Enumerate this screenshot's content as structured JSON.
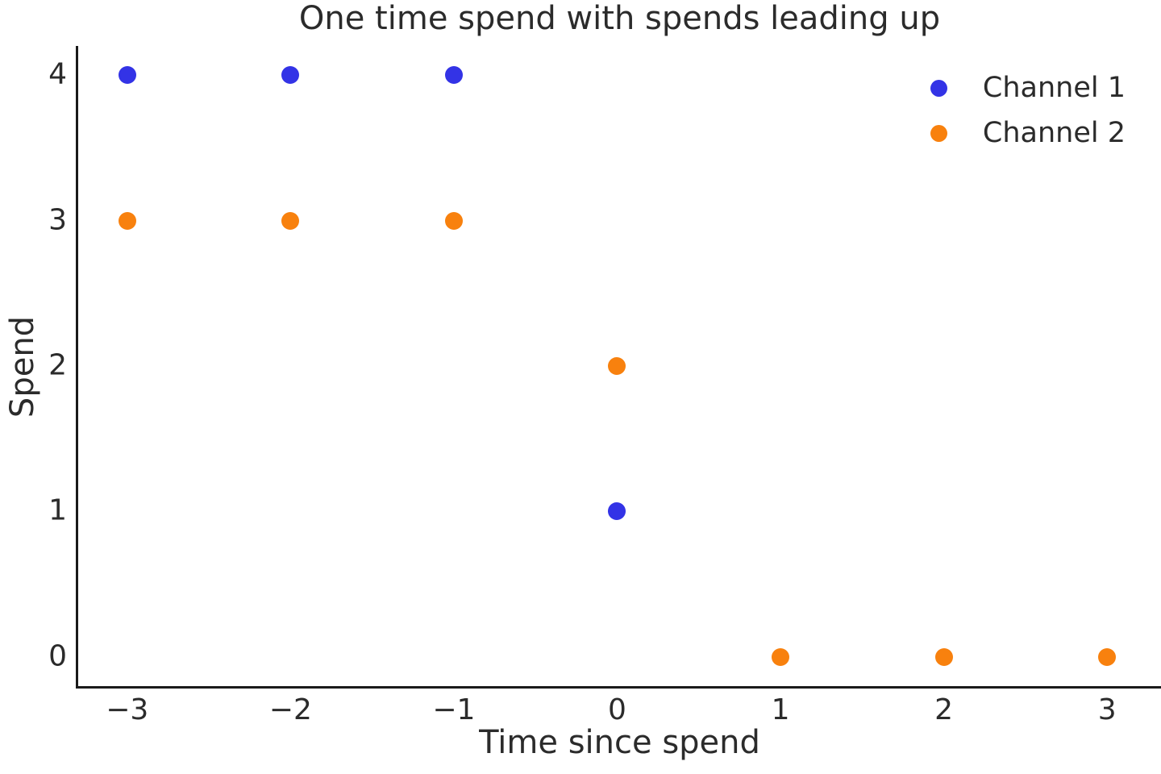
{
  "chart_data": {
    "type": "scatter",
    "title": "One time spend with spends leading up",
    "xlabel": "Time since spend",
    "ylabel": "Spend",
    "xlim": [
      -3.3,
      3.33
    ],
    "ylim": [
      -0.2,
      4.2
    ],
    "grid": false,
    "legend_position": "upper right",
    "text_color": "#2b2b2b",
    "axis_color": "#1a1a1a",
    "marker_radius": 11,
    "xticks": [
      {
        "value": -3,
        "label": "−3"
      },
      {
        "value": -2,
        "label": "−2"
      },
      {
        "value": -1,
        "label": "−1"
      },
      {
        "value": 0,
        "label": "0"
      },
      {
        "value": 1,
        "label": "1"
      },
      {
        "value": 2,
        "label": "2"
      },
      {
        "value": 3,
        "label": "3"
      }
    ],
    "yticks": [
      {
        "value": 0,
        "label": "0"
      },
      {
        "value": 1,
        "label": "1"
      },
      {
        "value": 2,
        "label": "2"
      },
      {
        "value": 3,
        "label": "3"
      },
      {
        "value": 4,
        "label": "4"
      }
    ],
    "series": [
      {
        "name": "Channel 1",
        "color": "#3333e6",
        "points": [
          {
            "x": -3,
            "y": 4
          },
          {
            "x": -2,
            "y": 4
          },
          {
            "x": -1,
            "y": 4
          },
          {
            "x": 0,
            "y": 1
          }
        ]
      },
      {
        "name": "Channel 2",
        "color": "#f8810e",
        "points": [
          {
            "x": -3,
            "y": 3
          },
          {
            "x": -2,
            "y": 3
          },
          {
            "x": -1,
            "y": 3
          },
          {
            "x": 0,
            "y": 2
          },
          {
            "x": 1,
            "y": 0
          },
          {
            "x": 2,
            "y": 0
          },
          {
            "x": 3,
            "y": 0
          }
        ]
      }
    ]
  }
}
